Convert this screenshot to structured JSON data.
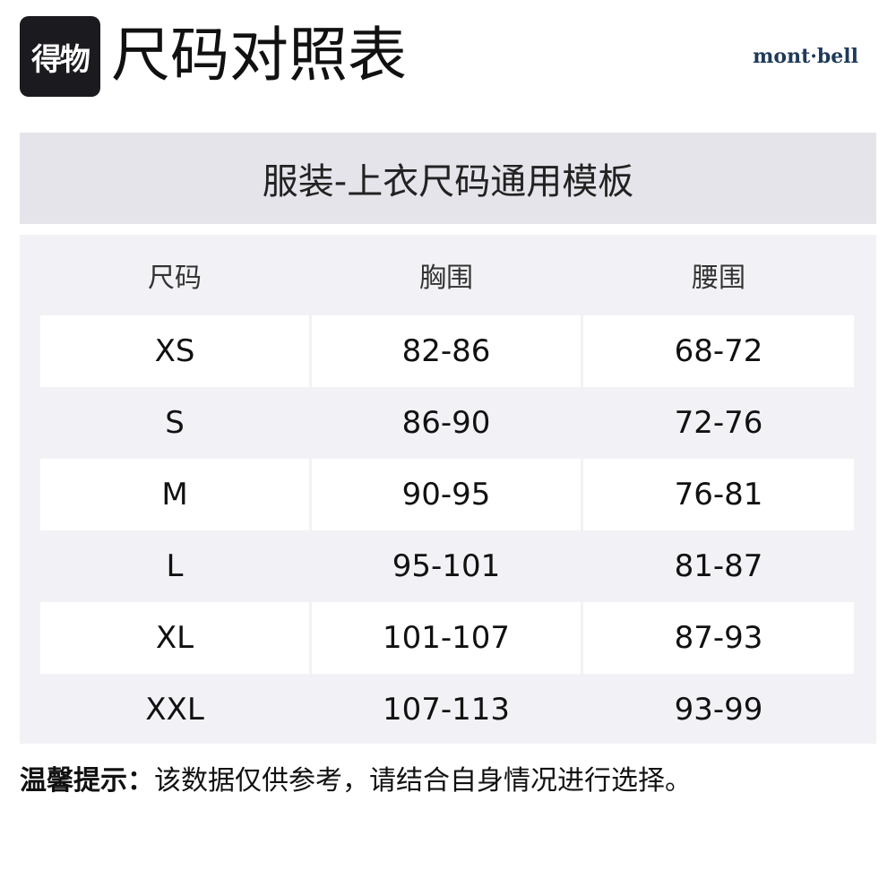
{
  "header": {
    "logo_text": "得物",
    "title": "尺码对照表",
    "brand": "mont·bell"
  },
  "table_title": "服装-上衣尺码通用模板",
  "columns": [
    "尺码",
    "胸围",
    "腰围"
  ],
  "rows": [
    [
      "XS",
      "82-86",
      "68-72"
    ],
    [
      "S",
      "86-90",
      "72-76"
    ],
    [
      "M",
      "90-95",
      "76-81"
    ],
    [
      "L",
      "95-101",
      "81-87"
    ],
    [
      "XL",
      "101-107",
      "87-93"
    ],
    [
      "XXL",
      "107-113",
      "93-99"
    ]
  ],
  "note": {
    "label": "温馨提示：",
    "text": "该数据仅供参考，请结合自身情况进行选择。"
  }
}
